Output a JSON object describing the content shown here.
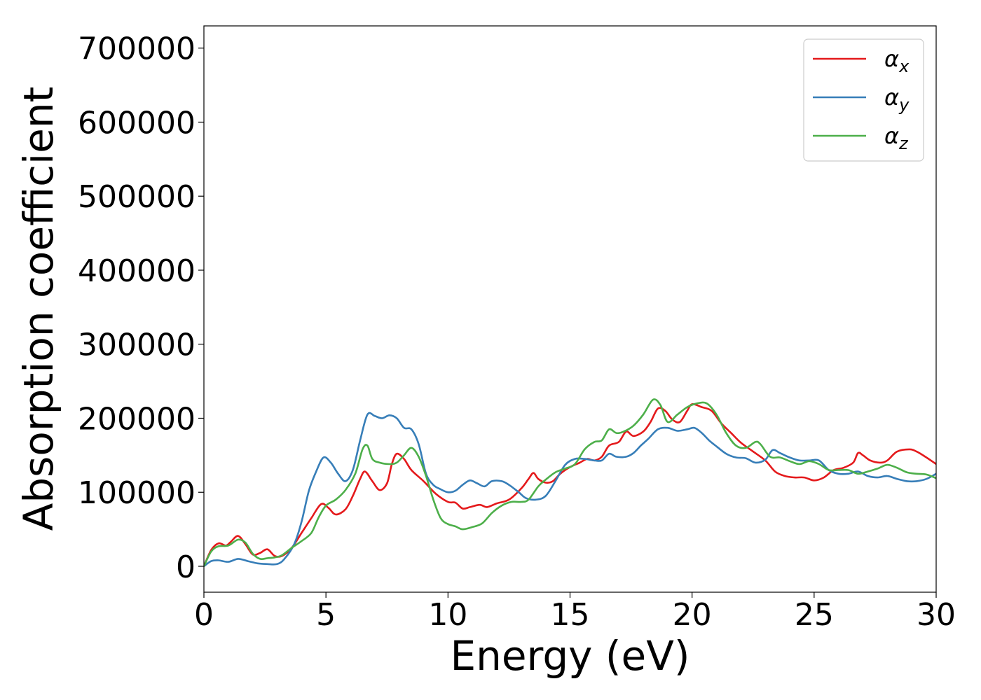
{
  "chart_data": {
    "type": "line",
    "title": "",
    "xlabel": "Energy (eV)",
    "ylabel": "Absorption coefficient",
    "xlim": [
      0,
      30
    ],
    "ylim": [
      -35000,
      730000
    ],
    "xticks": [
      0,
      5,
      10,
      15,
      20,
      25,
      30
    ],
    "yticks": [
      0,
      100000,
      200000,
      300000,
      400000,
      500000,
      600000,
      700000
    ],
    "xtick_labels": [
      "0",
      "5",
      "10",
      "15",
      "20",
      "25",
      "30"
    ],
    "ytick_labels": [
      "0",
      "100000",
      "200000",
      "300000",
      "400000",
      "500000",
      "600000",
      "700000"
    ],
    "grid": false,
    "legend_position": "top-right",
    "series": [
      {
        "name": "αx",
        "symbol": "α",
        "subscript": "x",
        "color": "#e41a1c",
        "points": [
          [
            0,
            0
          ],
          [
            0.3,
            22000
          ],
          [
            0.6,
            31000
          ],
          [
            0.9,
            28000
          ],
          [
            1.1,
            33000
          ],
          [
            1.4,
            41000
          ],
          [
            1.7,
            30000
          ],
          [
            2.0,
            16000
          ],
          [
            2.3,
            18000
          ],
          [
            2.6,
            23000
          ],
          [
            2.9,
            14000
          ],
          [
            3.2,
            14000
          ],
          [
            3.6,
            25000
          ],
          [
            4.0,
            45000
          ],
          [
            4.4,
            65000
          ],
          [
            4.8,
            84000
          ],
          [
            5.1,
            79000
          ],
          [
            5.4,
            70000
          ],
          [
            5.8,
            77000
          ],
          [
            6.1,
            95000
          ],
          [
            6.4,
            118000
          ],
          [
            6.6,
            128000
          ],
          [
            6.9,
            115000
          ],
          [
            7.2,
            103000
          ],
          [
            7.5,
            112000
          ],
          [
            7.7,
            138000
          ],
          [
            7.9,
            152000
          ],
          [
            8.2,
            145000
          ],
          [
            8.5,
            130000
          ],
          [
            9.0,
            115000
          ],
          [
            9.5,
            98000
          ],
          [
            10.0,
            87000
          ],
          [
            10.3,
            86000
          ],
          [
            10.6,
            78000
          ],
          [
            10.9,
            80000
          ],
          [
            11.3,
            83000
          ],
          [
            11.6,
            80000
          ],
          [
            12.0,
            85000
          ],
          [
            12.5,
            90000
          ],
          [
            13.0,
            105000
          ],
          [
            13.3,
            118000
          ],
          [
            13.5,
            126000
          ],
          [
            13.7,
            118000
          ],
          [
            14.0,
            113000
          ],
          [
            14.3,
            115000
          ],
          [
            14.6,
            125000
          ],
          [
            15.0,
            134000
          ],
          [
            15.4,
            140000
          ],
          [
            15.7,
            145000
          ],
          [
            16.0,
            143000
          ],
          [
            16.3,
            148000
          ],
          [
            16.6,
            163000
          ],
          [
            17.0,
            168000
          ],
          [
            17.3,
            182000
          ],
          [
            17.6,
            176000
          ],
          [
            18.0,
            182000
          ],
          [
            18.3,
            195000
          ],
          [
            18.6,
            213000
          ],
          [
            18.9,
            210000
          ],
          [
            19.2,
            198000
          ],
          [
            19.5,
            195000
          ],
          [
            19.8,
            210000
          ],
          [
            20.0,
            219000
          ],
          [
            20.4,
            215000
          ],
          [
            20.8,
            210000
          ],
          [
            21.2,
            193000
          ],
          [
            21.6,
            180000
          ],
          [
            22.0,
            167000
          ],
          [
            22.5,
            155000
          ],
          [
            23.0,
            143000
          ],
          [
            23.4,
            128000
          ],
          [
            23.8,
            122000
          ],
          [
            24.2,
            120000
          ],
          [
            24.6,
            120000
          ],
          [
            25.0,
            116000
          ],
          [
            25.4,
            120000
          ],
          [
            25.8,
            130000
          ],
          [
            26.2,
            133000
          ],
          [
            26.6,
            140000
          ],
          [
            26.8,
            153000
          ],
          [
            27.0,
            150000
          ],
          [
            27.3,
            143000
          ],
          [
            27.7,
            140000
          ],
          [
            28.0,
            143000
          ],
          [
            28.4,
            155000
          ],
          [
            28.9,
            158000
          ],
          [
            29.2,
            155000
          ],
          [
            29.6,
            147000
          ],
          [
            30.0,
            138000
          ]
        ]
      },
      {
        "name": "αy",
        "symbol": "α",
        "subscript": "y",
        "color": "#377eb8",
        "points": [
          [
            0,
            0
          ],
          [
            0.3,
            7000
          ],
          [
            0.6,
            8000
          ],
          [
            1.0,
            6000
          ],
          [
            1.4,
            10000
          ],
          [
            1.8,
            7000
          ],
          [
            2.2,
            4000
          ],
          [
            2.6,
            3000
          ],
          [
            3.0,
            3000
          ],
          [
            3.3,
            10000
          ],
          [
            3.7,
            30000
          ],
          [
            4.0,
            60000
          ],
          [
            4.3,
            102000
          ],
          [
            4.6,
            128000
          ],
          [
            4.9,
            147000
          ],
          [
            5.2,
            140000
          ],
          [
            5.5,
            125000
          ],
          [
            5.8,
            115000
          ],
          [
            6.1,
            130000
          ],
          [
            6.4,
            170000
          ],
          [
            6.7,
            205000
          ],
          [
            7.0,
            203000
          ],
          [
            7.3,
            200000
          ],
          [
            7.6,
            204000
          ],
          [
            7.9,
            200000
          ],
          [
            8.2,
            187000
          ],
          [
            8.5,
            185000
          ],
          [
            8.8,
            165000
          ],
          [
            9.1,
            125000
          ],
          [
            9.4,
            110000
          ],
          [
            9.7,
            104000
          ],
          [
            10.0,
            100000
          ],
          [
            10.3,
            102000
          ],
          [
            10.6,
            110000
          ],
          [
            10.9,
            116000
          ],
          [
            11.2,
            112000
          ],
          [
            11.5,
            108000
          ],
          [
            11.8,
            115000
          ],
          [
            12.2,
            115000
          ],
          [
            12.5,
            110000
          ],
          [
            12.9,
            100000
          ],
          [
            13.2,
            92000
          ],
          [
            13.6,
            90000
          ],
          [
            14.0,
            95000
          ],
          [
            14.4,
            115000
          ],
          [
            14.8,
            137000
          ],
          [
            15.2,
            145000
          ],
          [
            15.6,
            145000
          ],
          [
            16.0,
            143000
          ],
          [
            16.3,
            143000
          ],
          [
            16.6,
            152000
          ],
          [
            16.9,
            148000
          ],
          [
            17.3,
            148000
          ],
          [
            17.6,
            153000
          ],
          [
            17.9,
            163000
          ],
          [
            18.2,
            172000
          ],
          [
            18.6,
            185000
          ],
          [
            19.0,
            187000
          ],
          [
            19.4,
            183000
          ],
          [
            19.8,
            185000
          ],
          [
            20.1,
            187000
          ],
          [
            20.4,
            180000
          ],
          [
            20.7,
            170000
          ],
          [
            21.0,
            162000
          ],
          [
            21.4,
            152000
          ],
          [
            21.8,
            147000
          ],
          [
            22.2,
            146000
          ],
          [
            22.6,
            140000
          ],
          [
            23.0,
            144000
          ],
          [
            23.3,
            157000
          ],
          [
            23.6,
            153000
          ],
          [
            24.0,
            147000
          ],
          [
            24.4,
            143000
          ],
          [
            24.8,
            143000
          ],
          [
            25.2,
            143000
          ],
          [
            25.6,
            130000
          ],
          [
            26.0,
            125000
          ],
          [
            26.4,
            125000
          ],
          [
            26.8,
            128000
          ],
          [
            27.2,
            122000
          ],
          [
            27.6,
            120000
          ],
          [
            28.0,
            122000
          ],
          [
            28.4,
            118000
          ],
          [
            28.8,
            115000
          ],
          [
            29.2,
            115000
          ],
          [
            29.6,
            118000
          ],
          [
            30.0,
            125000
          ]
        ]
      },
      {
        "name": "αz",
        "symbol": "α",
        "subscript": "z",
        "color": "#4daf4a",
        "points": [
          [
            0,
            0
          ],
          [
            0.3,
            20000
          ],
          [
            0.6,
            27000
          ],
          [
            1.0,
            28000
          ],
          [
            1.4,
            36000
          ],
          [
            1.7,
            32000
          ],
          [
            2.0,
            17000
          ],
          [
            2.3,
            10000
          ],
          [
            2.6,
            11000
          ],
          [
            2.9,
            12000
          ],
          [
            3.2,
            15000
          ],
          [
            3.6,
            25000
          ],
          [
            4.0,
            34000
          ],
          [
            4.4,
            45000
          ],
          [
            4.7,
            66000
          ],
          [
            5.0,
            82000
          ],
          [
            5.4,
            90000
          ],
          [
            5.8,
            103000
          ],
          [
            6.2,
            125000
          ],
          [
            6.5,
            158000
          ],
          [
            6.7,
            163000
          ],
          [
            6.9,
            145000
          ],
          [
            7.2,
            140000
          ],
          [
            7.6,
            138000
          ],
          [
            7.9,
            140000
          ],
          [
            8.2,
            150000
          ],
          [
            8.5,
            160000
          ],
          [
            8.8,
            148000
          ],
          [
            9.1,
            122000
          ],
          [
            9.4,
            90000
          ],
          [
            9.7,
            65000
          ],
          [
            10.0,
            57000
          ],
          [
            10.3,
            54000
          ],
          [
            10.6,
            50000
          ],
          [
            11.0,
            53000
          ],
          [
            11.4,
            58000
          ],
          [
            11.8,
            72000
          ],
          [
            12.2,
            82000
          ],
          [
            12.6,
            87000
          ],
          [
            13.0,
            87000
          ],
          [
            13.3,
            90000
          ],
          [
            13.7,
            108000
          ],
          [
            14.0,
            117000
          ],
          [
            14.4,
            127000
          ],
          [
            14.8,
            132000
          ],
          [
            15.2,
            138000
          ],
          [
            15.6,
            158000
          ],
          [
            16.0,
            168000
          ],
          [
            16.3,
            170000
          ],
          [
            16.6,
            185000
          ],
          [
            16.9,
            180000
          ],
          [
            17.2,
            182000
          ],
          [
            17.6,
            190000
          ],
          [
            18.0,
            205000
          ],
          [
            18.4,
            225000
          ],
          [
            18.7,
            218000
          ],
          [
            19.0,
            195000
          ],
          [
            19.4,
            205000
          ],
          [
            19.8,
            215000
          ],
          [
            20.2,
            220000
          ],
          [
            20.6,
            220000
          ],
          [
            21.0,
            205000
          ],
          [
            21.4,
            180000
          ],
          [
            21.8,
            163000
          ],
          [
            22.2,
            160000
          ],
          [
            22.6,
            168000
          ],
          [
            22.8,
            165000
          ],
          [
            23.2,
            148000
          ],
          [
            23.6,
            147000
          ],
          [
            24.0,
            142000
          ],
          [
            24.4,
            138000
          ],
          [
            24.8,
            142000
          ],
          [
            25.2,
            138000
          ],
          [
            25.6,
            130000
          ],
          [
            26.0,
            130000
          ],
          [
            26.4,
            130000
          ],
          [
            26.8,
            125000
          ],
          [
            27.2,
            128000
          ],
          [
            27.6,
            132000
          ],
          [
            28.0,
            137000
          ],
          [
            28.4,
            133000
          ],
          [
            28.8,
            127000
          ],
          [
            29.2,
            125000
          ],
          [
            29.6,
            124000
          ],
          [
            30.0,
            119000
          ]
        ]
      }
    ]
  }
}
